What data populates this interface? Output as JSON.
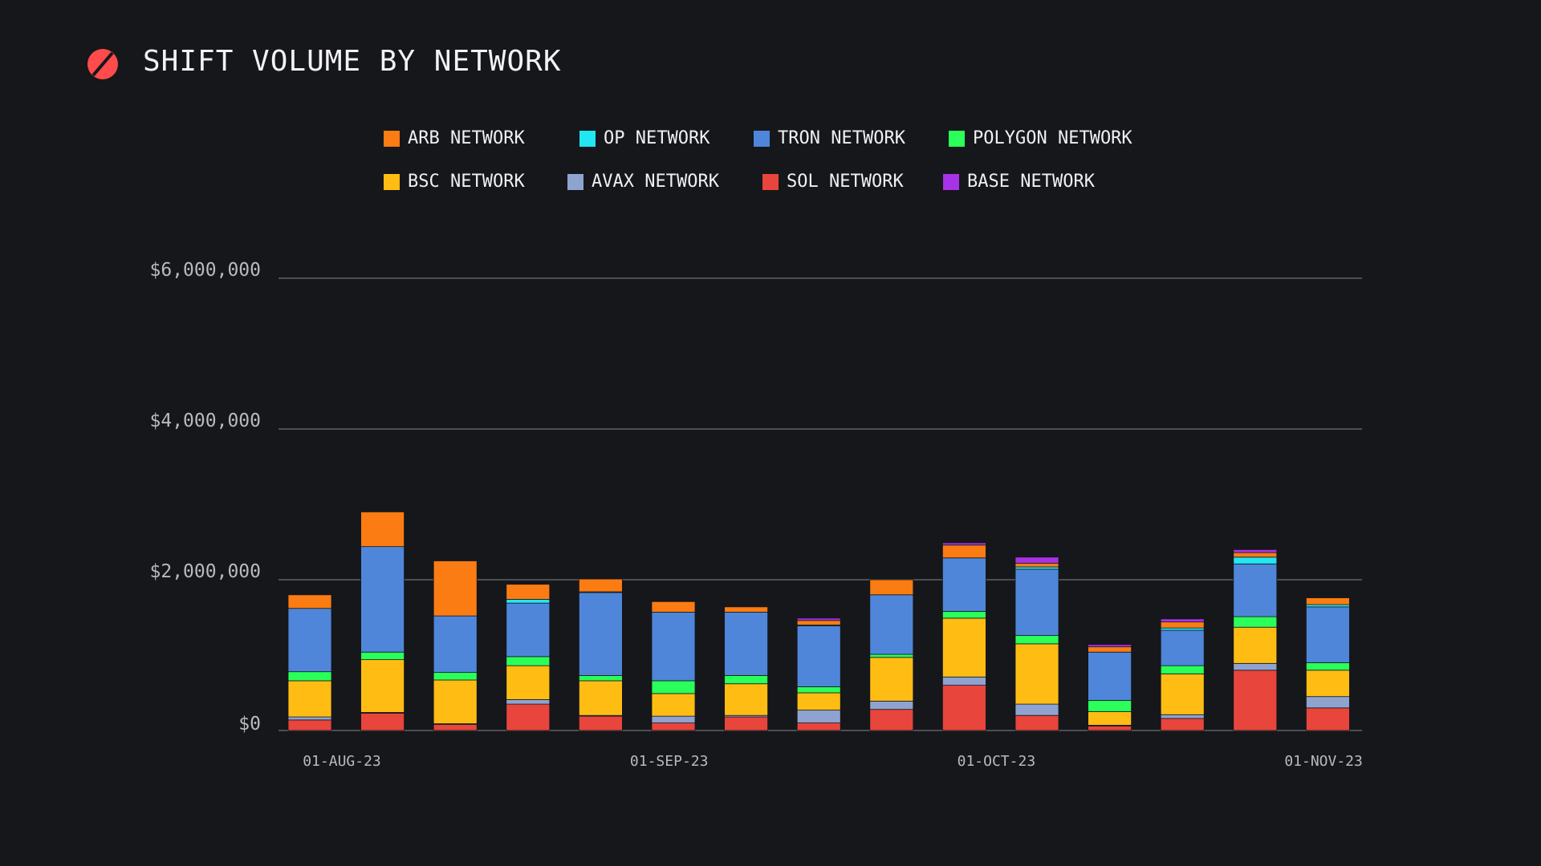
{
  "header": {
    "title": "SHIFT VOLUME BY NETWORK",
    "logo_icon": "red-slashed-circle-icon",
    "logo_color": "#ff4b4b"
  },
  "chart_data": {
    "type": "bar",
    "stacked": true,
    "title": "SHIFT VOLUME BY NETWORK",
    "xlabel": "",
    "ylabel": "",
    "ylim": [
      0,
      6000000
    ],
    "yticks": [
      0,
      2000000,
      4000000,
      6000000
    ],
    "ytick_labels": [
      "$0",
      "$2,000,000",
      "$4,000,000",
      "$6,000,000"
    ],
    "x_tick_labels": [
      "01-AUG-23",
      "01-SEP-23",
      "01-OCT-23",
      "01-NOV-23"
    ],
    "x_tick_positions": [
      0,
      4.5,
      9,
      13.5
    ],
    "grid": true,
    "legend_placement": "top-center",
    "categories": [
      "2023-07-31",
      "2023-08-07",
      "2023-08-14",
      "2023-08-21",
      "2023-08-28",
      "2023-09-04",
      "2023-09-11",
      "2023-09-18",
      "2023-09-25",
      "2023-10-02",
      "2023-10-09",
      "2023-10-16",
      "2023-10-23",
      "2023-10-30",
      "2023-11-06"
    ],
    "series": [
      {
        "name": "SOL NETWORK",
        "color": "#e8453c",
        "values": [
          140000,
          230000,
          80000,
          350000,
          190000,
          100000,
          180000,
          100000,
          280000,
          600000,
          200000,
          60000,
          160000,
          800000,
          300000
        ]
      },
      {
        "name": "AVAX NETWORK",
        "color": "#8fa3d1",
        "values": [
          40000,
          10000,
          10000,
          60000,
          10000,
          90000,
          20000,
          170000,
          110000,
          110000,
          150000,
          10000,
          50000,
          90000,
          150000
        ]
      },
      {
        "name": "BSC NETWORK",
        "color": "#ffbd14",
        "values": [
          480000,
          700000,
          580000,
          450000,
          460000,
          300000,
          420000,
          230000,
          580000,
          780000,
          800000,
          180000,
          540000,
          480000,
          350000
        ]
      },
      {
        "name": "POLYGON NETWORK",
        "color": "#2aff5a",
        "values": [
          120000,
          100000,
          100000,
          120000,
          70000,
          170000,
          110000,
          80000,
          40000,
          90000,
          110000,
          150000,
          110000,
          140000,
          100000
        ]
      },
      {
        "name": "TRON NETWORK",
        "color": "#4f86d9",
        "values": [
          840000,
          1400000,
          750000,
          710000,
          1100000,
          910000,
          840000,
          810000,
          790000,
          710000,
          880000,
          640000,
          470000,
          700000,
          740000
        ]
      },
      {
        "name": "OP NETWORK",
        "color": "#22e6f2",
        "values": [
          0,
          0,
          0,
          50000,
          10000,
          0,
          0,
          10000,
          0,
          0,
          30000,
          0,
          30000,
          90000,
          30000
        ]
      },
      {
        "name": "ARB NETWORK",
        "color": "#fb7c12",
        "values": [
          180000,
          460000,
          730000,
          200000,
          170000,
          140000,
          70000,
          60000,
          200000,
          170000,
          50000,
          70000,
          80000,
          60000,
          90000
        ]
      },
      {
        "name": "BASE NETWORK",
        "color": "#a832e8",
        "values": [
          0,
          0,
          0,
          0,
          0,
          0,
          0,
          30000,
          0,
          30000,
          80000,
          30000,
          40000,
          40000,
          0
        ]
      }
    ]
  },
  "legend": {
    "row1": [
      {
        "label": "ARB NETWORK",
        "color": "#fb7c12"
      },
      {
        "label": "OP NETWORK",
        "color": "#22e6f2"
      },
      {
        "label": "TRON NETWORK",
        "color": "#4f86d9"
      },
      {
        "label": "POLYGON NETWORK",
        "color": "#2aff5a"
      }
    ],
    "row2": [
      {
        "label": "BSC NETWORK",
        "color": "#ffbd14"
      },
      {
        "label": "AVAX NETWORK",
        "color": "#8fa3d1"
      },
      {
        "label": "SOL NETWORK",
        "color": "#e8453c"
      },
      {
        "label": "BASE NETWORK",
        "color": "#a832e8"
      }
    ]
  },
  "colors": {
    "background": "#16171b",
    "gridline": "#5e6066",
    "axis_text": "#b9bac0"
  }
}
